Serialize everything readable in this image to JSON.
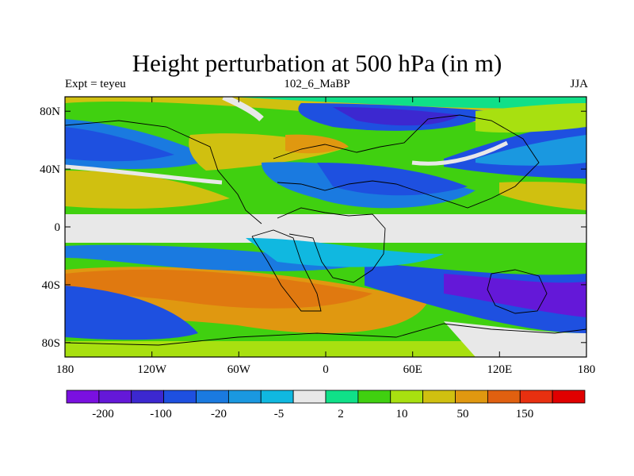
{
  "title": "Height perturbation at 500 hPa (in m)",
  "subtitle_left": "Expt = teyeu",
  "subtitle_center": "102_6_MaBP",
  "subtitle_right": "JJA",
  "map": {
    "lon_range": [
      -180,
      180
    ],
    "lat_range": [
      -90,
      90
    ],
    "x_ticks": [
      "180",
      "120W",
      "60W",
      "0",
      "60E",
      "120E",
      "180"
    ],
    "y_ticks": [
      "80N",
      "40N",
      "0",
      "40S",
      "80S"
    ]
  },
  "colorbar": {
    "colors": [
      "#7a10e0",
      "#6418d8",
      "#3c28d0",
      "#1e50e0",
      "#1a7ae0",
      "#1a98e0",
      "#10b8e0",
      "#e8e8e8",
      "#10e088",
      "#40d010",
      "#a8e010",
      "#d0c010",
      "#e09810",
      "#e06010",
      "#e83010",
      "#e00000"
    ],
    "labels": [
      "-200",
      "-100",
      "-20",
      "-5",
      "2",
      "10",
      "50",
      "150"
    ]
  }
}
